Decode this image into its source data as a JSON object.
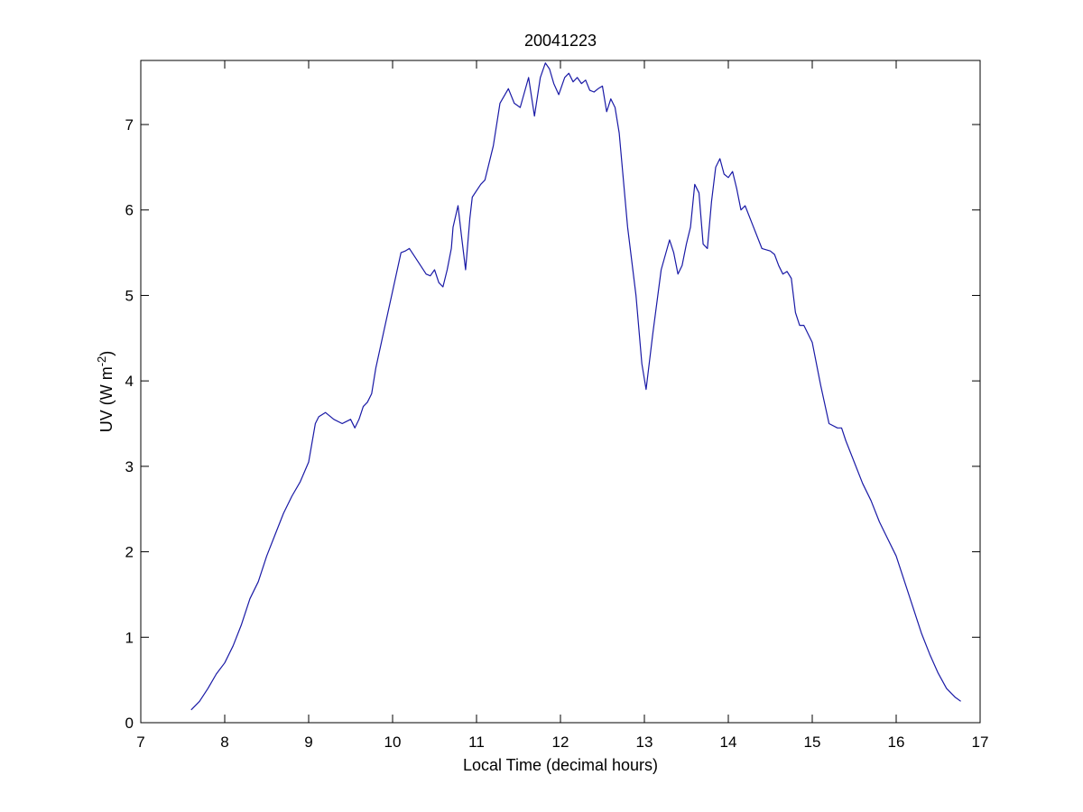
{
  "chart_data": {
    "type": "line",
    "title": "20041223",
    "xlabel": "Local Time (decimal hours)",
    "ylabel": {
      "main": "UV (W m",
      "superscript": "-2",
      "closing": ")"
    },
    "xlim": [
      7,
      17
    ],
    "ylim": [
      0,
      7.75
    ],
    "xticks": [
      "7",
      "8",
      "9",
      "10",
      "11",
      "12",
      "13",
      "14",
      "15",
      "16",
      "17"
    ],
    "yticks": [
      "0",
      "1",
      "2",
      "3",
      "4",
      "5",
      "6",
      "7"
    ],
    "grid": false,
    "line_color": "#1a1aa6",
    "series": [
      {
        "x": [
          7.6,
          7.7,
          7.8,
          7.9,
          8.0,
          8.1,
          8.2,
          8.3,
          8.4,
          8.5,
          8.6,
          8.7,
          8.8,
          8.9,
          9.0,
          9.08,
          9.12,
          9.2,
          9.3,
          9.4,
          9.5,
          9.55,
          9.6,
          9.65,
          9.7,
          9.75,
          9.8,
          9.9,
          10.0,
          10.1,
          10.15,
          10.2,
          10.3,
          10.4,
          10.45,
          10.5,
          10.55,
          10.6,
          10.65,
          10.7,
          10.72,
          10.78,
          10.82,
          10.87,
          10.92,
          10.95,
          11.05,
          11.1,
          11.2,
          11.28,
          11.38,
          11.45,
          11.52,
          11.62,
          11.69,
          11.76,
          11.82,
          11.87,
          11.92,
          11.98,
          12.05,
          12.1,
          12.15,
          12.2,
          12.25,
          12.3,
          12.35,
          12.4,
          12.45,
          12.5,
          12.55,
          12.6,
          12.65,
          12.7,
          12.8,
          12.9,
          12.97,
          13.02,
          13.1,
          13.2,
          13.3,
          13.35,
          13.4,
          13.45,
          13.5,
          13.55,
          13.6,
          13.65,
          13.7,
          13.75,
          13.8,
          13.85,
          13.9,
          13.95,
          14.0,
          14.05,
          14.1,
          14.15,
          14.2,
          14.3,
          14.4,
          14.5,
          14.55,
          14.6,
          14.65,
          14.7,
          14.75,
          14.8,
          14.85,
          14.9,
          15.0,
          15.1,
          15.2,
          15.3,
          15.35,
          15.4,
          15.5,
          15.6,
          15.7,
          15.8,
          15.9,
          16.0,
          16.1,
          16.2,
          16.3,
          16.4,
          16.5,
          16.6,
          16.7,
          16.77
        ],
        "y": [
          0.15,
          0.25,
          0.4,
          0.57,
          0.7,
          0.9,
          1.15,
          1.45,
          1.65,
          1.95,
          2.2,
          2.45,
          2.65,
          2.82,
          3.05,
          3.5,
          3.58,
          3.63,
          3.55,
          3.5,
          3.55,
          3.45,
          3.55,
          3.7,
          3.75,
          3.85,
          4.15,
          4.6,
          5.05,
          5.5,
          5.52,
          5.55,
          5.4,
          5.25,
          5.23,
          5.3,
          5.15,
          5.1,
          5.3,
          5.55,
          5.8,
          6.05,
          5.7,
          5.3,
          5.9,
          6.15,
          6.3,
          6.35,
          6.75,
          7.25,
          7.42,
          7.25,
          7.2,
          7.55,
          7.1,
          7.55,
          7.72,
          7.65,
          7.48,
          7.35,
          7.55,
          7.6,
          7.5,
          7.55,
          7.48,
          7.52,
          7.4,
          7.38,
          7.42,
          7.45,
          7.15,
          7.3,
          7.2,
          6.9,
          5.8,
          5.0,
          4.2,
          3.9,
          4.55,
          5.3,
          5.65,
          5.5,
          5.25,
          5.35,
          5.6,
          5.8,
          6.3,
          6.2,
          5.6,
          5.55,
          6.1,
          6.5,
          6.6,
          6.42,
          6.38,
          6.45,
          6.25,
          6.0,
          6.05,
          5.8,
          5.55,
          5.52,
          5.48,
          5.35,
          5.25,
          5.28,
          5.2,
          4.8,
          4.65,
          4.65,
          4.45,
          3.95,
          3.5,
          3.45,
          3.45,
          3.3,
          3.05,
          2.8,
          2.6,
          2.35,
          2.15,
          1.95,
          1.65,
          1.35,
          1.05,
          0.8,
          0.58,
          0.4,
          0.3,
          0.25
        ]
      }
    ]
  }
}
